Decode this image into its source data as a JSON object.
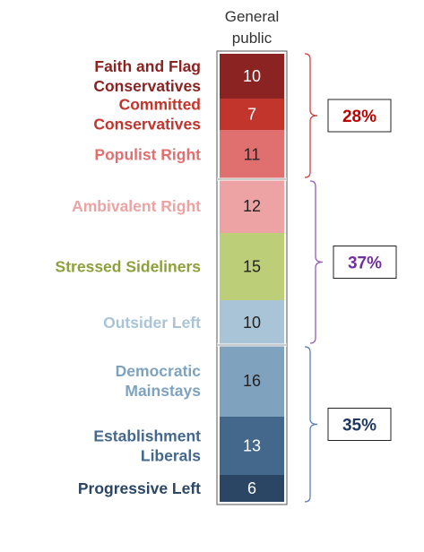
{
  "chart_data": {
    "type": "bar",
    "column_header": [
      "General",
      "public"
    ],
    "categories": [
      [
        "Faith and Flag",
        "Conservatives"
      ],
      [
        "Committed",
        "Conservatives"
      ],
      [
        "Populist Right"
      ],
      [
        "Ambivalent Right"
      ],
      [
        "Stressed Sideliners"
      ],
      [
        "Outsider Left"
      ],
      [
        "Democratic",
        "Mainstays"
      ],
      [
        "Establishment",
        "Liberals"
      ],
      [
        "Progressive Left"
      ]
    ],
    "values": [
      10,
      7,
      11,
      12,
      15,
      10,
      16,
      13,
      6
    ],
    "bar_colors": [
      "#8b2323",
      "#c1352d",
      "#e07070",
      "#eda3a3",
      "#bccf78",
      "#a9c4d6",
      "#7fa3bf",
      "#44688c",
      "#2a4664"
    ],
    "label_colors": [
      "#8b2323",
      "#c1352d",
      "#e07070",
      "#eda3a3",
      "#8ea03c",
      "#a9c4d6",
      "#7fa3bf",
      "#44688c",
      "#2a4664"
    ],
    "value_text_colors": [
      "#ffffff",
      "#ffffff",
      "#222222",
      "#222222",
      "#222222",
      "#222222",
      "#222222",
      "#ffffff",
      "#ffffff"
    ],
    "groups": [
      {
        "label": "28%",
        "from": 0,
        "to": 2,
        "color": "#c00000",
        "bracket_color": "#d04040"
      },
      {
        "label": "37%",
        "from": 3,
        "to": 5,
        "color": "#7030a0",
        "bracket_color": "#8f5fb8"
      },
      {
        "label": "35%",
        "from": 6,
        "to": 8,
        "color": "#1f3864",
        "bracket_color": "#5a7fb5"
      }
    ],
    "xlabel": "",
    "ylabel": ""
  }
}
